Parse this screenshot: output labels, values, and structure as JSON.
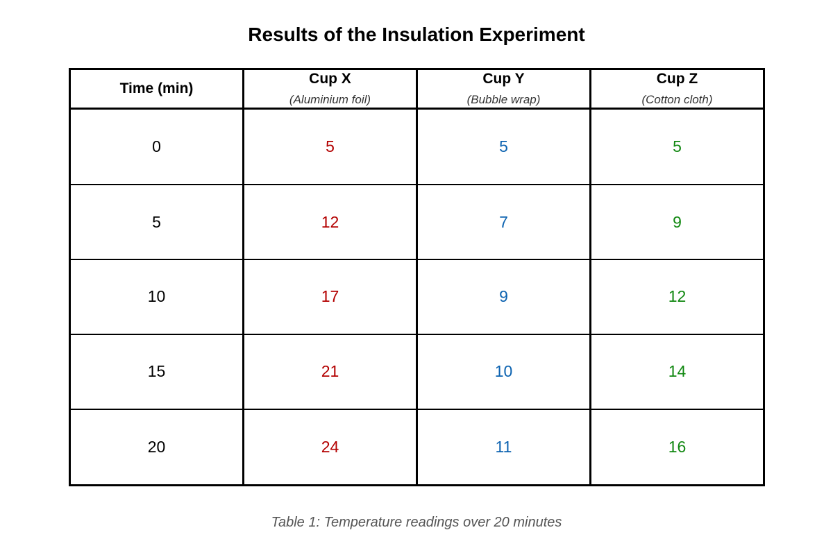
{
  "chart_data": {
    "type": "table",
    "title": "Results of the Insulation Experiment",
    "caption": "Table 1: Temperature readings over 20 minutes",
    "time_header": "Time (min)",
    "columns": [
      {
        "name": "Cup X",
        "material": "(Aluminium foil)",
        "color": "#b30000"
      },
      {
        "name": "Cup Y",
        "material": "(Bubble wrap)",
        "color": "#0b62b0"
      },
      {
        "name": "Cup Z",
        "material": "(Cotton cloth)",
        "color": "#118811"
      }
    ],
    "rows": [
      {
        "time": "0",
        "values": [
          "5",
          "5",
          "5"
        ]
      },
      {
        "time": "5",
        "values": [
          "12",
          "7",
          "9"
        ]
      },
      {
        "time": "10",
        "values": [
          "17",
          "9",
          "12"
        ]
      },
      {
        "time": "15",
        "values": [
          "21",
          "10",
          "14"
        ]
      },
      {
        "time": "20",
        "values": [
          "24",
          "11",
          "16"
        ]
      }
    ]
  }
}
